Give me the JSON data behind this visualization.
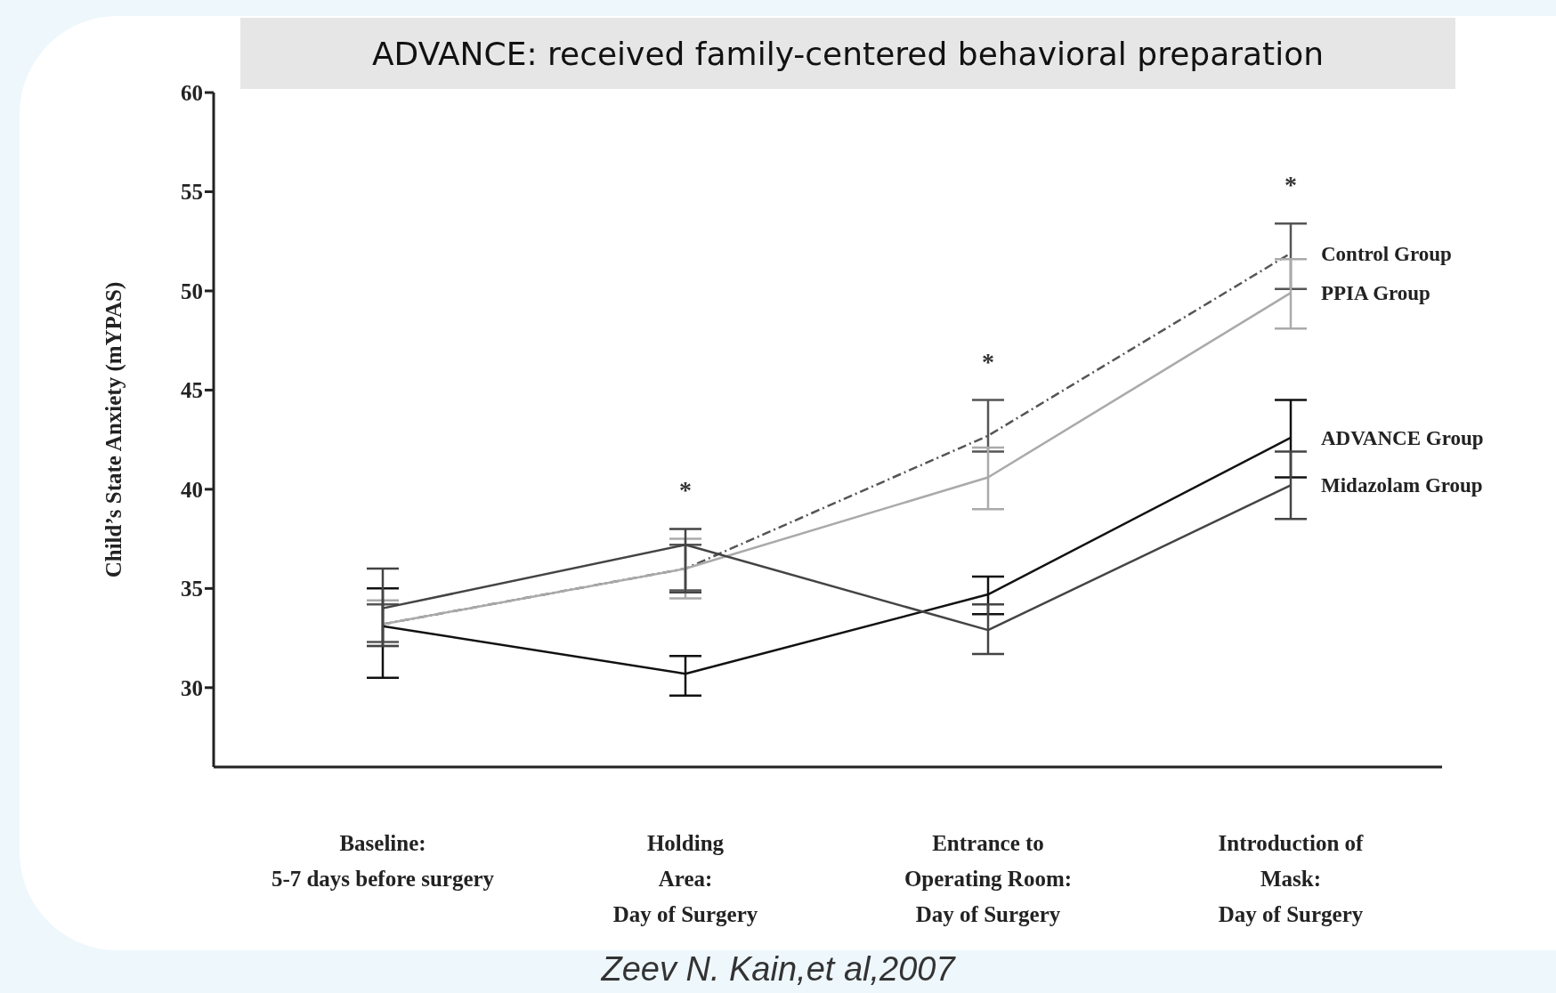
{
  "chart_data": {
    "type": "line",
    "title": "ADVANCE: received family-centered behavioral preparation",
    "ylabel": "Child’s State Anxiety (mYPAS)",
    "categories": [
      "Baseline:\n\n5-7 days before surgery",
      "Holding\nArea:\nDay of Surgery",
      "Entrance to\nOperating Room:\nDay of Surgery",
      "Introduction of\nMask:\nDay of Surgery"
    ],
    "series": [
      {
        "name": "Control Group",
        "color": "#555555",
        "line_style": "dashed",
        "values": [
          33.2,
          36.0,
          42.7,
          51.9
        ],
        "errors": [
          [
            32.3,
            34.2
          ],
          [
            34.9,
            37.2
          ],
          [
            41.9,
            44.5
          ],
          [
            50.1,
            53.4
          ]
        ]
      },
      {
        "name": "PPIA Group",
        "color": "#aaaaaa",
        "values": [
          33.2,
          36.0,
          40.6,
          49.9
        ],
        "errors": [
          [
            32.1,
            34.4
          ],
          [
            34.5,
            37.5
          ],
          [
            39.0,
            42.1
          ],
          [
            48.1,
            51.6
          ]
        ]
      },
      {
        "name": "ADVANCE Group",
        "color": "#111111",
        "values": [
          33.1,
          30.7,
          34.7,
          42.6
        ],
        "errors": [
          [
            30.5,
            35.0
          ],
          [
            29.6,
            31.6
          ],
          [
            33.7,
            35.6
          ],
          [
            40.6,
            44.5
          ]
        ]
      },
      {
        "name": "Midazolam Group",
        "color": "#444444",
        "values": [
          34.0,
          37.2,
          32.9,
          40.2
        ],
        "errors": [
          [
            32.1,
            36.0
          ],
          [
            34.8,
            38.0
          ],
          [
            31.7,
            34.2
          ],
          [
            38.5,
            41.9
          ]
        ]
      }
    ],
    "ylim": [
      26,
      60
    ],
    "yticks": [
      30,
      35,
      40,
      45,
      50,
      55,
      60
    ],
    "grid": false,
    "legend": false,
    "marker": "none",
    "line_style": "solid",
    "annotations": [
      "*",
      "*",
      "*",
      "Zeev N. Kain,et al,2007"
    ]
  }
}
